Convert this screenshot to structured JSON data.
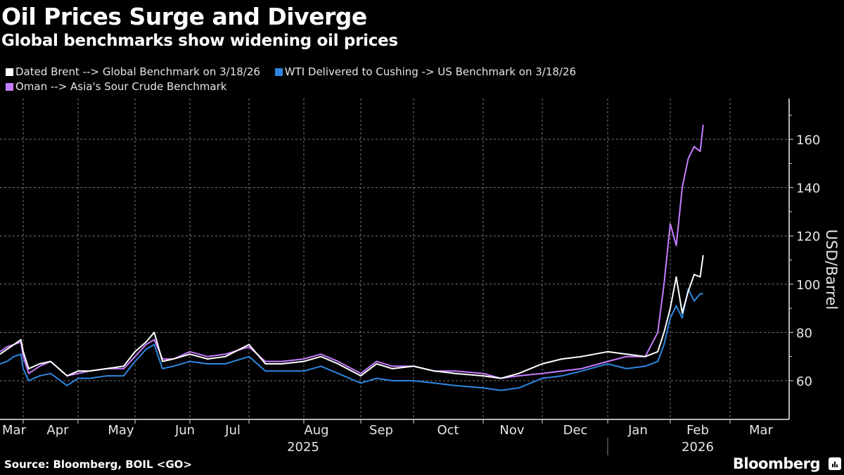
{
  "header": {
    "title": "Oil Prices Surge and Diverge",
    "subtitle": "Global benchmarks show widening oil prices"
  },
  "footer": {
    "source": "Source: Bloomberg, BOIL <GO>",
    "brand": "Bloomberg"
  },
  "chart_data": {
    "type": "line",
    "title": "Oil Prices Surge and Diverge",
    "subtitle": "Global benchmarks show widening oil prices",
    "xlabel": "",
    "ylabel": "USD/Barrel",
    "ylim": [
      45,
      178
    ],
    "yticks": [
      60,
      80,
      100,
      120,
      140,
      160
    ],
    "grid": true,
    "legend_position": "top-left",
    "x_months": [
      "Mar",
      "Apr",
      "May",
      "Jun",
      "Jul",
      "Aug",
      "Sep",
      "Oct",
      "Nov",
      "Dec",
      "Jan",
      "Feb",
      "Mar"
    ],
    "x_years": [
      {
        "label": "2025",
        "under": "Aug"
      },
      {
        "label": "2026",
        "under": "Feb"
      }
    ],
    "x_note": "x values are months since 2025-03-01",
    "series": [
      {
        "name": "Dated Brent --> Global Benchmark on 3/18/26",
        "color": "#ffffff",
        "x": [
          0,
          0.3,
          0.6,
          0.9,
          1.0,
          1.1,
          1.3,
          1.5,
          1.8,
          2.0,
          2.2,
          2.5,
          2.8,
          3.0,
          3.2,
          3.35,
          3.5,
          3.7,
          4.0,
          4.3,
          4.6,
          5.0,
          5.3,
          5.6,
          6.0,
          6.3,
          6.6,
          7.0,
          7.3,
          7.6,
          8.0,
          8.3,
          8.6,
          9.0,
          9.3,
          9.6,
          10.0,
          10.3,
          10.6,
          11.0,
          11.3,
          11.6,
          11.8,
          11.9,
          12.0,
          12.1,
          12.2,
          12.3,
          12.4,
          12.5,
          12.55
        ],
        "values": [
          71,
          73,
          75,
          77,
          72,
          65,
          67,
          68,
          62,
          64,
          64,
          65,
          66,
          72,
          76,
          80,
          68,
          69,
          71,
          69,
          70,
          75,
          67,
          67,
          68,
          70,
          67,
          62,
          67,
          65,
          66,
          64,
          63,
          62,
          61,
          63,
          67,
          69,
          70,
          72,
          71,
          70,
          72,
          80,
          90,
          103,
          88,
          97,
          104,
          103,
          112
        ]
      },
      {
        "name": "WTI Delivered to Cushing -> US Benchmark on 3/18/26",
        "color": "#2e86de",
        "x": [
          0,
          0.3,
          0.6,
          0.9,
          1.0,
          1.1,
          1.3,
          1.5,
          1.8,
          2.0,
          2.2,
          2.5,
          2.8,
          3.0,
          3.2,
          3.35,
          3.5,
          3.7,
          4.0,
          4.3,
          4.6,
          5.0,
          5.3,
          5.6,
          6.0,
          6.3,
          6.6,
          7.0,
          7.3,
          7.6,
          8.0,
          8.3,
          8.6,
          9.0,
          9.3,
          9.6,
          10.0,
          10.3,
          10.6,
          11.0,
          11.3,
          11.6,
          11.8,
          11.9,
          12.0,
          12.1,
          12.2,
          12.3,
          12.4,
          12.5,
          12.55
        ],
        "values": [
          67,
          68,
          70,
          71,
          65,
          60,
          62,
          63,
          58,
          61,
          61,
          62,
          62,
          68,
          73,
          75,
          65,
          66,
          68,
          67,
          67,
          70,
          64,
          64,
          64,
          66,
          63,
          59,
          61,
          60,
          60,
          59,
          58,
          57,
          56,
          57,
          61,
          62,
          64,
          67,
          65,
          66,
          68,
          75,
          86,
          91,
          86,
          98,
          93,
          96,
          96
        ]
      },
      {
        "name": "Oman --> Asia's Sour Crude Benchmark",
        "color": "#c77dff",
        "x": [
          0,
          0.3,
          0.6,
          0.9,
          1.0,
          1.1,
          1.3,
          1.5,
          1.8,
          2.0,
          2.2,
          2.5,
          2.8,
          3.0,
          3.2,
          3.35,
          3.5,
          3.7,
          4.0,
          4.3,
          4.6,
          5.0,
          5.3,
          5.6,
          6.0,
          6.3,
          6.6,
          7.0,
          7.3,
          7.6,
          8.0,
          8.3,
          8.6,
          9.0,
          9.3,
          9.6,
          10.0,
          10.3,
          10.6,
          11.0,
          11.3,
          11.6,
          11.8,
          11.9,
          12.0,
          12.1,
          12.2,
          12.3,
          12.4,
          12.5,
          12.55
        ],
        "values": [
          72,
          74,
          75,
          76,
          70,
          63,
          66,
          68,
          62,
          63,
          64,
          65,
          65,
          70,
          75,
          77,
          69,
          69,
          72,
          70,
          71,
          74,
          68,
          68,
          69,
          71,
          68,
          63,
          68,
          66,
          66,
          64,
          64,
          63,
          61,
          62,
          63,
          64,
          65,
          68,
          70,
          70,
          80,
          100,
          125,
          116,
          140,
          152,
          157,
          155,
          166
        ]
      }
    ]
  }
}
